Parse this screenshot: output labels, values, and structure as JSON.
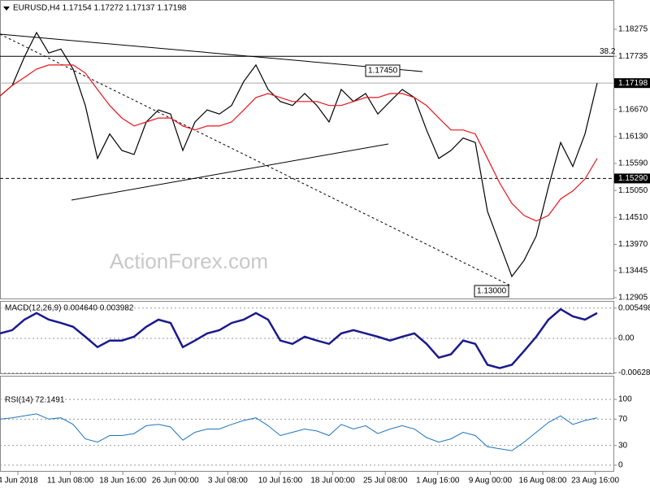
{
  "chart_data": [
    {
      "type": "line",
      "title": "EURUSD,H4  1.17154 1.17272 1.17137 1.17198",
      "watermark": "ActionForex.com",
      "fib_label": "38.2",
      "annotations": [
        "1.17450",
        "1.13000"
      ],
      "series": [
        {
          "color": "#000000",
          "values": [
            1.1694,
            1.1715,
            1.1772,
            1.1821,
            1.178,
            1.1788,
            1.1748,
            1.1675,
            1.1569,
            1.1618,
            1.1585,
            1.1577,
            1.1642,
            1.1666,
            1.1658,
            1.1585,
            1.1642,
            1.1666,
            1.1658,
            1.1675,
            1.1723,
            1.1756,
            1.1707,
            1.1683,
            1.1675,
            1.1699,
            1.1675,
            1.1642,
            1.1707,
            1.1683,
            1.1699,
            1.1658,
            1.1683,
            1.1707,
            1.1691,
            1.1626,
            1.1569,
            1.1585,
            1.161,
            1.1601,
            1.1463,
            1.1398,
            1.1333,
            1.1365,
            1.1414,
            1.1512,
            1.1601,
            1.1553,
            1.1618,
            1.172
          ]
        },
        {
          "color": "#e8141c",
          "values": [
            1.1694,
            1.1715,
            1.1731,
            1.1748,
            1.1756,
            1.1756,
            1.1756,
            1.174,
            1.1707,
            1.1675,
            1.165,
            1.1634,
            1.1642,
            1.165,
            1.165,
            1.1634,
            1.1626,
            1.1634,
            1.1634,
            1.1642,
            1.1666,
            1.1691,
            1.1699,
            1.1691,
            1.1683,
            1.1683,
            1.1683,
            1.1675,
            1.1675,
            1.1683,
            1.1691,
            1.1691,
            1.1699,
            1.1699,
            1.1691,
            1.1675,
            1.165,
            1.1626,
            1.1626,
            1.1618,
            1.1569,
            1.152,
            1.1479,
            1.1455,
            1.1444,
            1.1455,
            1.1488,
            1.1504,
            1.1528,
            1.1569
          ]
        }
      ],
      "ylim": [
        1.12872,
        1.18861
      ],
      "yticks": [
        1.18275,
        1.17735,
        {
          "value": 1.17198,
          "label": "1.17198",
          "highlight": true
        },
        {
          "value": 1.1667,
          "label": "1.16670"
        },
        {
          "value": 1.1613,
          "label": "1.16130"
        },
        {
          "value": 1.1559,
          "label": "1.15590"
        },
        {
          "value": 1.1529,
          "label": "1.15290",
          "highlight": true
        },
        {
          "value": 1.1505,
          "label": "1.15050"
        },
        {
          "value": 1.1451,
          "label": "1.14510"
        },
        {
          "value": 1.1397,
          "label": "1.13970"
        },
        1.13445,
        1.12905
      ]
    },
    {
      "type": "line",
      "title": "MACD(12,26,9) 0.004640 0.003982",
      "series": [
        {
          "color": "#1a1a8c",
          "values": [
            0.0009,
            0.0015,
            0.0034,
            0.0046,
            0.0034,
            0.0028,
            0.0021,
            0.0003,
            -0.0016,
            -0.0004,
            -0.0004,
            0.0003,
            0.0021,
            0.0034,
            0.0028,
            -0.0016,
            -0.0004,
            0.0009,
            0.0015,
            0.0028,
            0.0034,
            0.0046,
            0.0034,
            -0.0004,
            -0.001,
            0.0003,
            -0.0004,
            -0.001,
            0.0009,
            0.0015,
            0.0009,
            0.0003,
            -0.0004,
            0.0003,
            0.0009,
            -0.001,
            -0.0035,
            -0.0029,
            -0.0004,
            -0.001,
            -0.0048,
            -0.0054,
            -0.0048,
            -0.0023,
            0.0003,
            0.0034,
            0.0053,
            0.004,
            0.0034,
            0.0046
          ]
        }
      ],
      "ylim": [
        -0.0065,
        0.0068
      ],
      "yticks": [
        0.005498,
        {
          "value": 0,
          "label": "0.00"
        },
        -0.006283
      ]
    },
    {
      "type": "line",
      "title": "RSI(14) 72.1491",
      "series": [
        {
          "color": "#1e73be",
          "values": [
            70,
            72,
            75,
            78,
            70,
            72,
            62,
            40,
            35,
            45,
            45,
            48,
            60,
            62,
            58,
            38,
            50,
            55,
            55,
            62,
            68,
            72,
            60,
            45,
            50,
            55,
            52,
            45,
            62,
            55,
            60,
            48,
            55,
            60,
            55,
            42,
            35,
            40,
            50,
            45,
            28,
            25,
            22,
            35,
            50,
            65,
            75,
            62,
            68,
            72
          ]
        }
      ],
      "ylim": [
        -10,
        136
      ],
      "yticks": [
        100,
        70,
        30,
        0
      ],
      "x_labels": [
        "4 Jun 2018",
        "11 Jun 08:00",
        "18 Jun 16:00",
        "26 Jun 00:00",
        "3 Jul 08:00",
        "10 Jul 16:00",
        "18 Jul 00:00",
        "25 Jul 08:00",
        "1 Aug 16:00",
        "9 Aug 00:00",
        "16 Aug 08:00",
        "23 Aug 16:00"
      ]
    }
  ]
}
